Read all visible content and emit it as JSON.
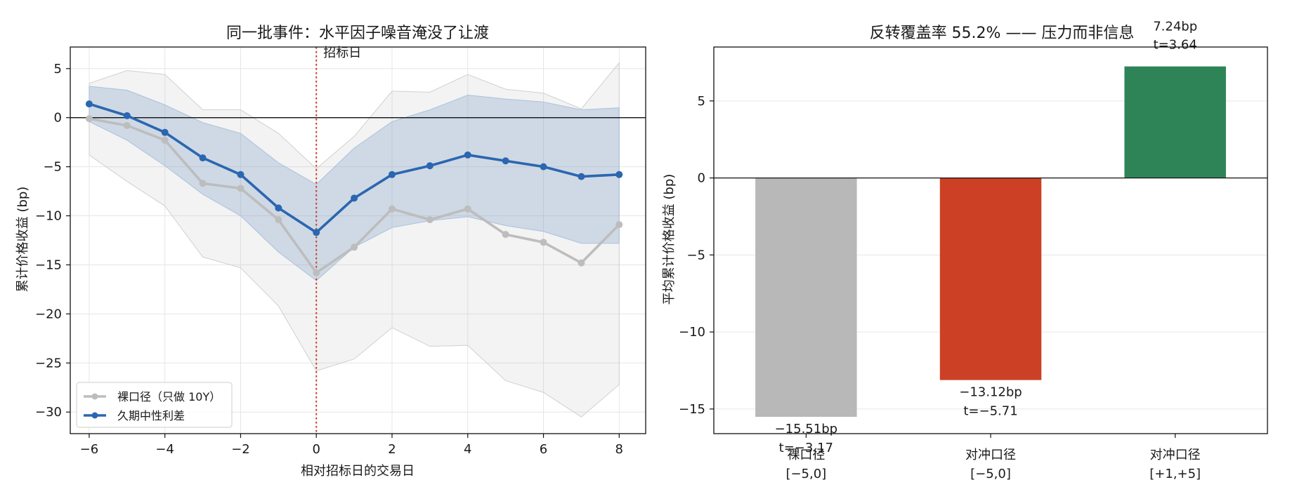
{
  "chart_data": [
    {
      "type": "line",
      "title": "同一批事件：水平因子噪音淹没了让渡",
      "xlabel": "相对招标日的交易日",
      "ylabel": "累计价格收益 (bp)",
      "xlim": [
        -6.5,
        8.7
      ],
      "ylim": [
        -32.2,
        7.2
      ],
      "xticks": [
        -6,
        -4,
        -2,
        0,
        2,
        4,
        6,
        8
      ],
      "xtick_labels": [
        "−6",
        "−4",
        "−2",
        "0",
        "2",
        "4",
        "6",
        "8"
      ],
      "yticks": [
        5,
        0,
        -5,
        -10,
        -15,
        -20,
        -25,
        -30
      ],
      "ytick_labels": [
        "5",
        "0",
        "−5",
        "−10",
        "−15",
        "−20",
        "−25",
        "−30"
      ],
      "grid": true,
      "legend_position": "lower-left",
      "x": [
        -6,
        -5,
        -4,
        -3,
        -2,
        -1,
        0,
        1,
        2,
        3,
        4,
        5,
        6,
        7,
        8
      ],
      "zero_line": 0,
      "annotation": {
        "x": 0,
        "text": "招标日",
        "color": "#cc3d22"
      },
      "series": [
        {
          "name": "裸口径（只做 10Y）",
          "color": "#bdbdbd",
          "values": [
            -0.1,
            -0.8,
            -2.3,
            -6.7,
            -7.2,
            -10.4,
            -15.8,
            -13.2,
            -9.3,
            -10.4,
            -9.3,
            -11.9,
            -12.7,
            -14.8,
            -10.9
          ],
          "band_lower": [
            -3.8,
            -6.5,
            -9.0,
            -14.2,
            -15.3,
            -19.2,
            -25.8,
            -24.6,
            -21.4,
            -23.3,
            -23.2,
            -26.8,
            -28.0,
            -30.5,
            -27.2
          ],
          "band_upper": [
            3.5,
            4.8,
            4.4,
            0.8,
            0.8,
            -1.6,
            -5.2,
            -1.9,
            2.7,
            2.6,
            4.4,
            2.9,
            2.5,
            0.9,
            5.6
          ]
        },
        {
          "name": "久期中性利差",
          "color": "#2b66b0",
          "values": [
            1.4,
            0.2,
            -1.5,
            -4.1,
            -5.8,
            -9.2,
            -11.7,
            -8.2,
            -5.8,
            -4.9,
            -3.8,
            -4.4,
            -5.0,
            -6.0,
            -5.8
          ],
          "band_lower": [
            -0.4,
            -2.3,
            -4.9,
            -7.8,
            -10.0,
            -13.7,
            -16.6,
            -13.2,
            -11.2,
            -10.5,
            -10.1,
            -11.0,
            -11.6,
            -12.8,
            -12.8
          ],
          "band_upper": [
            3.2,
            2.8,
            1.3,
            -0.5,
            -1.6,
            -4.6,
            -6.8,
            -3.1,
            -0.4,
            0.8,
            2.3,
            1.9,
            1.6,
            0.8,
            1.0
          ]
        }
      ]
    },
    {
      "type": "bar",
      "title": "反转覆盖率 55.2% —— 压力而非信息",
      "xlabel": "",
      "ylabel": "平均累计价格收益 (bp)",
      "ylim": [
        -16.6,
        8.5
      ],
      "yticks": [
        5,
        0,
        -5,
        -10,
        -15
      ],
      "ytick_labels": [
        "5",
        "0",
        "−5",
        "−10",
        "−15"
      ],
      "grid": true,
      "zero_line": 0,
      "categories": [
        {
          "line1": "裸口径",
          "line2": "[−5,0]"
        },
        {
          "line1": "对冲口径",
          "line2": "[−5,0]"
        },
        {
          "line1": "对冲口径",
          "line2": "[+1,+5]"
        }
      ],
      "values": [
        -15.51,
        -13.12,
        7.24
      ],
      "colors": [
        "#b8b8b8",
        "#cc4125",
        "#2e8457"
      ],
      "value_labels": [
        "−15.51bp",
        "−13.12bp",
        "7.24bp"
      ],
      "t_labels": [
        "t=−3.17",
        "t=−5.71",
        "t=3.64"
      ]
    }
  ]
}
